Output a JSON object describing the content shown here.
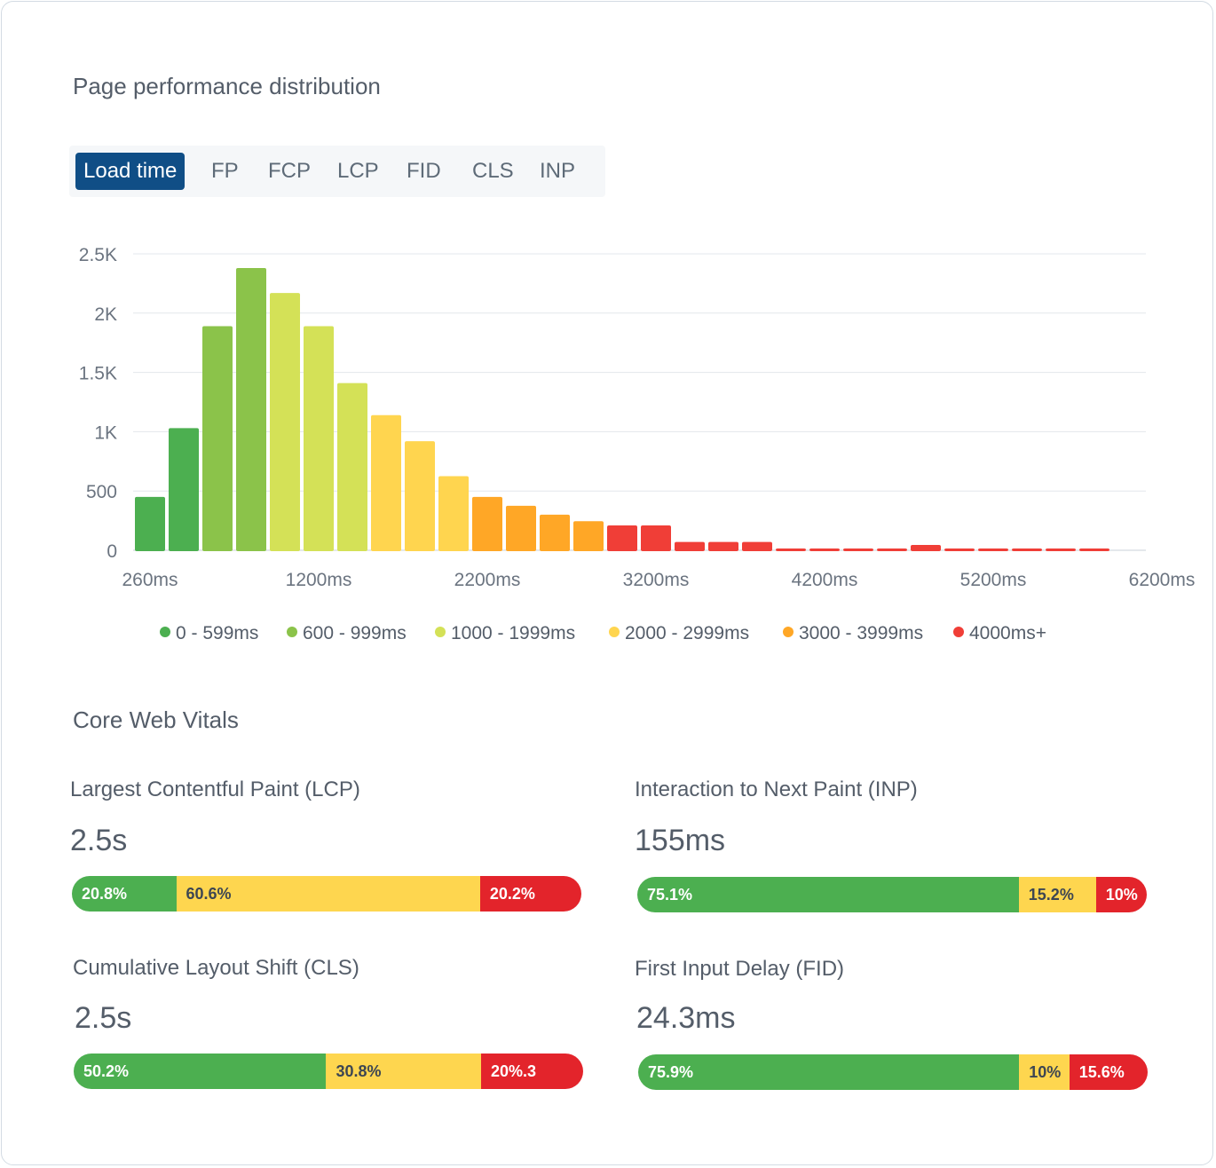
{
  "title": "Page performance distribution",
  "tabs": [
    {
      "label": "Load time",
      "active": true
    },
    {
      "label": "FP",
      "active": false
    },
    {
      "label": "FCP",
      "active": false
    },
    {
      "label": "LCP",
      "active": false
    },
    {
      "label": "FID",
      "active": false
    },
    {
      "label": "CLS",
      "active": false
    },
    {
      "label": "INP",
      "active": false
    }
  ],
  "colors": {
    "active_tab": "#104e86",
    "good": "#4caf50",
    "needs_improvement": "#fed64f",
    "poor": "#e3242b"
  },
  "chart_data": {
    "type": "bar",
    "title": "",
    "xlabel": "",
    "ylabel": "",
    "ylim": [
      0,
      2500
    ],
    "y_ticks": [
      "0",
      "500",
      "1K",
      "1.5K",
      "2K",
      "2.5K"
    ],
    "y_tick_values": [
      0,
      500,
      1000,
      1500,
      2000,
      2500
    ],
    "x_tick_labels": [
      "260ms",
      "1200ms",
      "2200ms",
      "3200ms",
      "4200ms",
      "5200ms",
      "6200ms"
    ],
    "x_tick_bar_index": [
      0,
      5,
      10,
      15,
      20,
      25,
      30
    ],
    "grid": true,
    "legend_position": "bottom",
    "legend": [
      {
        "label": "0 - 599ms",
        "color": "#4caf50"
      },
      {
        "label": "600 - 999ms",
        "color": "#8bc34a"
      },
      {
        "label": "1000 - 1999ms",
        "color": "#d4e157"
      },
      {
        "label": "2000 - 2999ms",
        "color": "#ffd54f"
      },
      {
        "label": "3000 - 3999ms",
        "color": "#ffa726"
      },
      {
        "label": "4000ms+",
        "color": "#f03e37"
      }
    ],
    "values": [
      450,
      1030,
      1890,
      2380,
      2170,
      1890,
      1410,
      1140,
      920,
      625,
      450,
      375,
      300,
      245,
      210,
      210,
      70,
      70,
      70,
      15,
      15,
      15,
      15,
      45,
      15,
      15,
      15,
      15,
      15
    ],
    "bar_range_index": [
      0,
      0,
      1,
      1,
      2,
      2,
      2,
      3,
      3,
      3,
      4,
      4,
      4,
      4,
      5,
      5,
      5,
      5,
      5,
      5,
      5,
      5,
      5,
      5,
      5,
      5,
      5,
      5,
      5
    ]
  },
  "core_web_vitals": {
    "title": "Core Web Vitals",
    "lcp": {
      "label": "Largest Contentful Paint (LCP)",
      "value": "2.5s",
      "segments": [
        {
          "pct": 20.8,
          "text": "20.8%"
        },
        {
          "pct": 60.6,
          "text": "60.6%"
        },
        {
          "pct": 20.2,
          "text": "20.2%"
        }
      ]
    },
    "inp": {
      "label": "Interaction to Next Paint (INP)",
      "value": "155ms",
      "segments": [
        {
          "pct": 75.1,
          "text": "75.1%"
        },
        {
          "pct": 15.2,
          "text": "15.2%"
        },
        {
          "pct": 10,
          "text": "10%"
        }
      ]
    },
    "cls": {
      "label": "Cumulative Layout Shift (CLS)",
      "value": "2.5s",
      "segments": [
        {
          "pct": 50.2,
          "text": "50.2%"
        },
        {
          "pct": 30.8,
          "text": "30.8%"
        },
        {
          "pct": 20.3,
          "text": "20%.3"
        }
      ]
    },
    "fid": {
      "label": "First Input Delay (FID)",
      "value": "24.3ms",
      "segments": [
        {
          "pct": 75.9,
          "text": "75.9%"
        },
        {
          "pct": 10,
          "text": "10%"
        },
        {
          "pct": 15.6,
          "text": "15.6%"
        }
      ]
    }
  }
}
